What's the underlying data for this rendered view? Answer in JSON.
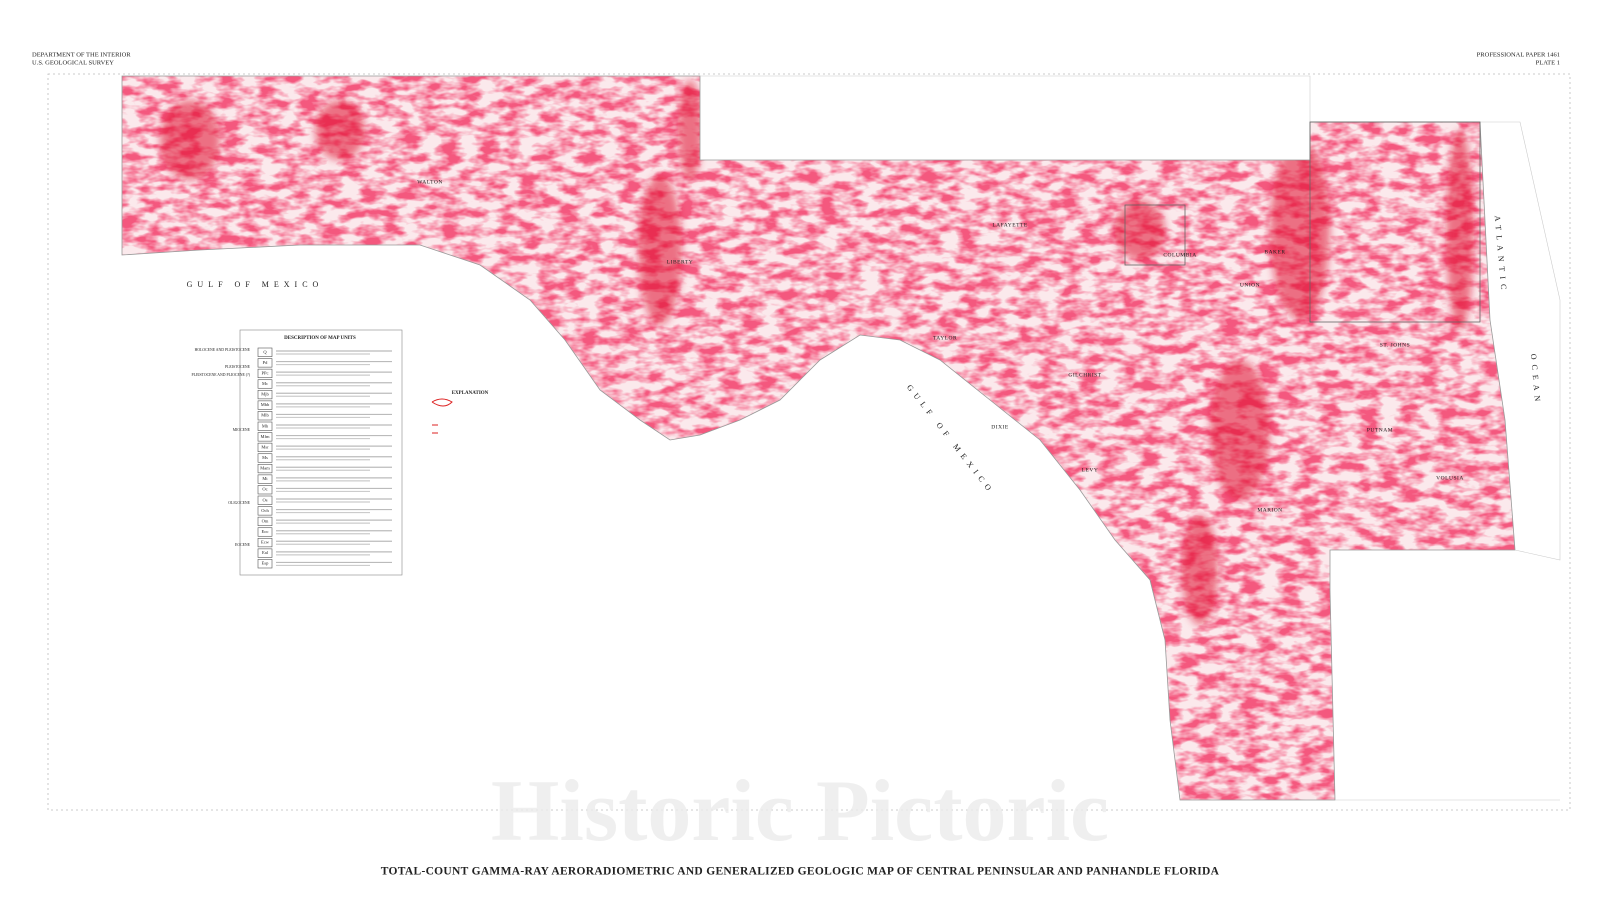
{
  "header": {
    "left": [
      "DEPARTMENT OF THE INTERIOR",
      "U.S. GEOLOGICAL SURVEY"
    ],
    "right": [
      "PROFESSIONAL PAPER 1461",
      "PLATE 1"
    ]
  },
  "water_labels": [
    "GULF OF MEXICO",
    "GULF OF MEXICO",
    "ATLANTIC",
    "OCEAN"
  ],
  "county_labels": [
    "WALTON",
    "LIBERTY",
    "TAYLOR",
    "LAFAYETTE",
    "DIXIE",
    "GILCHRIST",
    "COLUMBIA",
    "UNION",
    "BAKER",
    "ST. JOHNS",
    "PUTNAM",
    "VOLUSIA",
    "LEVY",
    "MARION"
  ],
  "legend": {
    "title": "DESCRIPTION OF MAP UNITS",
    "ages": [
      "HOLOCENE AND PLEISTOCENE",
      "PLEISTOCENE",
      "PLEISTOCENE AND PLIOCENE (?)",
      "MIOCENE",
      "OLIGOCENE",
      "EOCENE"
    ],
    "units": [
      "Q",
      "Pd",
      "PPc",
      "Mc",
      "Mjb",
      "Mbb",
      "Mlb",
      "Mh",
      "Mfm",
      "Msr",
      "Ms",
      "Mam",
      "Mt",
      "Oc",
      "Os",
      "Och",
      "Om",
      "Eoc",
      "Ecw",
      "Eal",
      "Esp"
    ]
  },
  "explanation": {
    "title": "EXPLANATION"
  },
  "title": "TOTAL-COUNT GAMMA-RAY AERORADIOMETRIC AND GENERALIZED GEOLOGIC MAP OF CENTRAL PENINSULAR AND PANHANDLE FLORIDA",
  "watermark": "Historic Pictoric"
}
